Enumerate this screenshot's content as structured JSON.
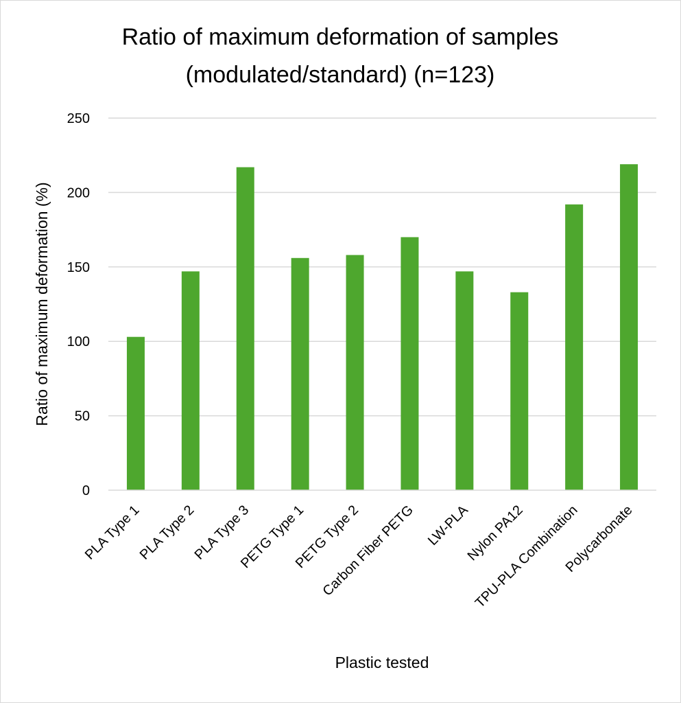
{
  "chart_data": {
    "type": "bar",
    "title": [
      "Ratio of maximum deformation of samples",
      "(modulated/standard) (n=123)"
    ],
    "xlabel": "Plastic tested",
    "ylabel": "Ratio of maximum deformation (%)",
    "ylim": [
      0,
      250
    ],
    "yticks": [
      0,
      50,
      100,
      150,
      200,
      250
    ],
    "grid": true,
    "bar_color": "#4EA72E",
    "grid_color": "#D9D9D9",
    "categories": [
      "PLA Type 1",
      "PLA Type 2",
      "PLA Type 3",
      "PETG Type 1",
      "PETG Type 2",
      "Carbon Fiber PETG",
      "LW-PLA",
      "Nylon PA12",
      "TPU-PLA Combination",
      "Polycarbonate"
    ],
    "values": [
      103,
      147,
      217,
      156,
      158,
      170,
      147,
      133,
      192,
      219
    ]
  }
}
